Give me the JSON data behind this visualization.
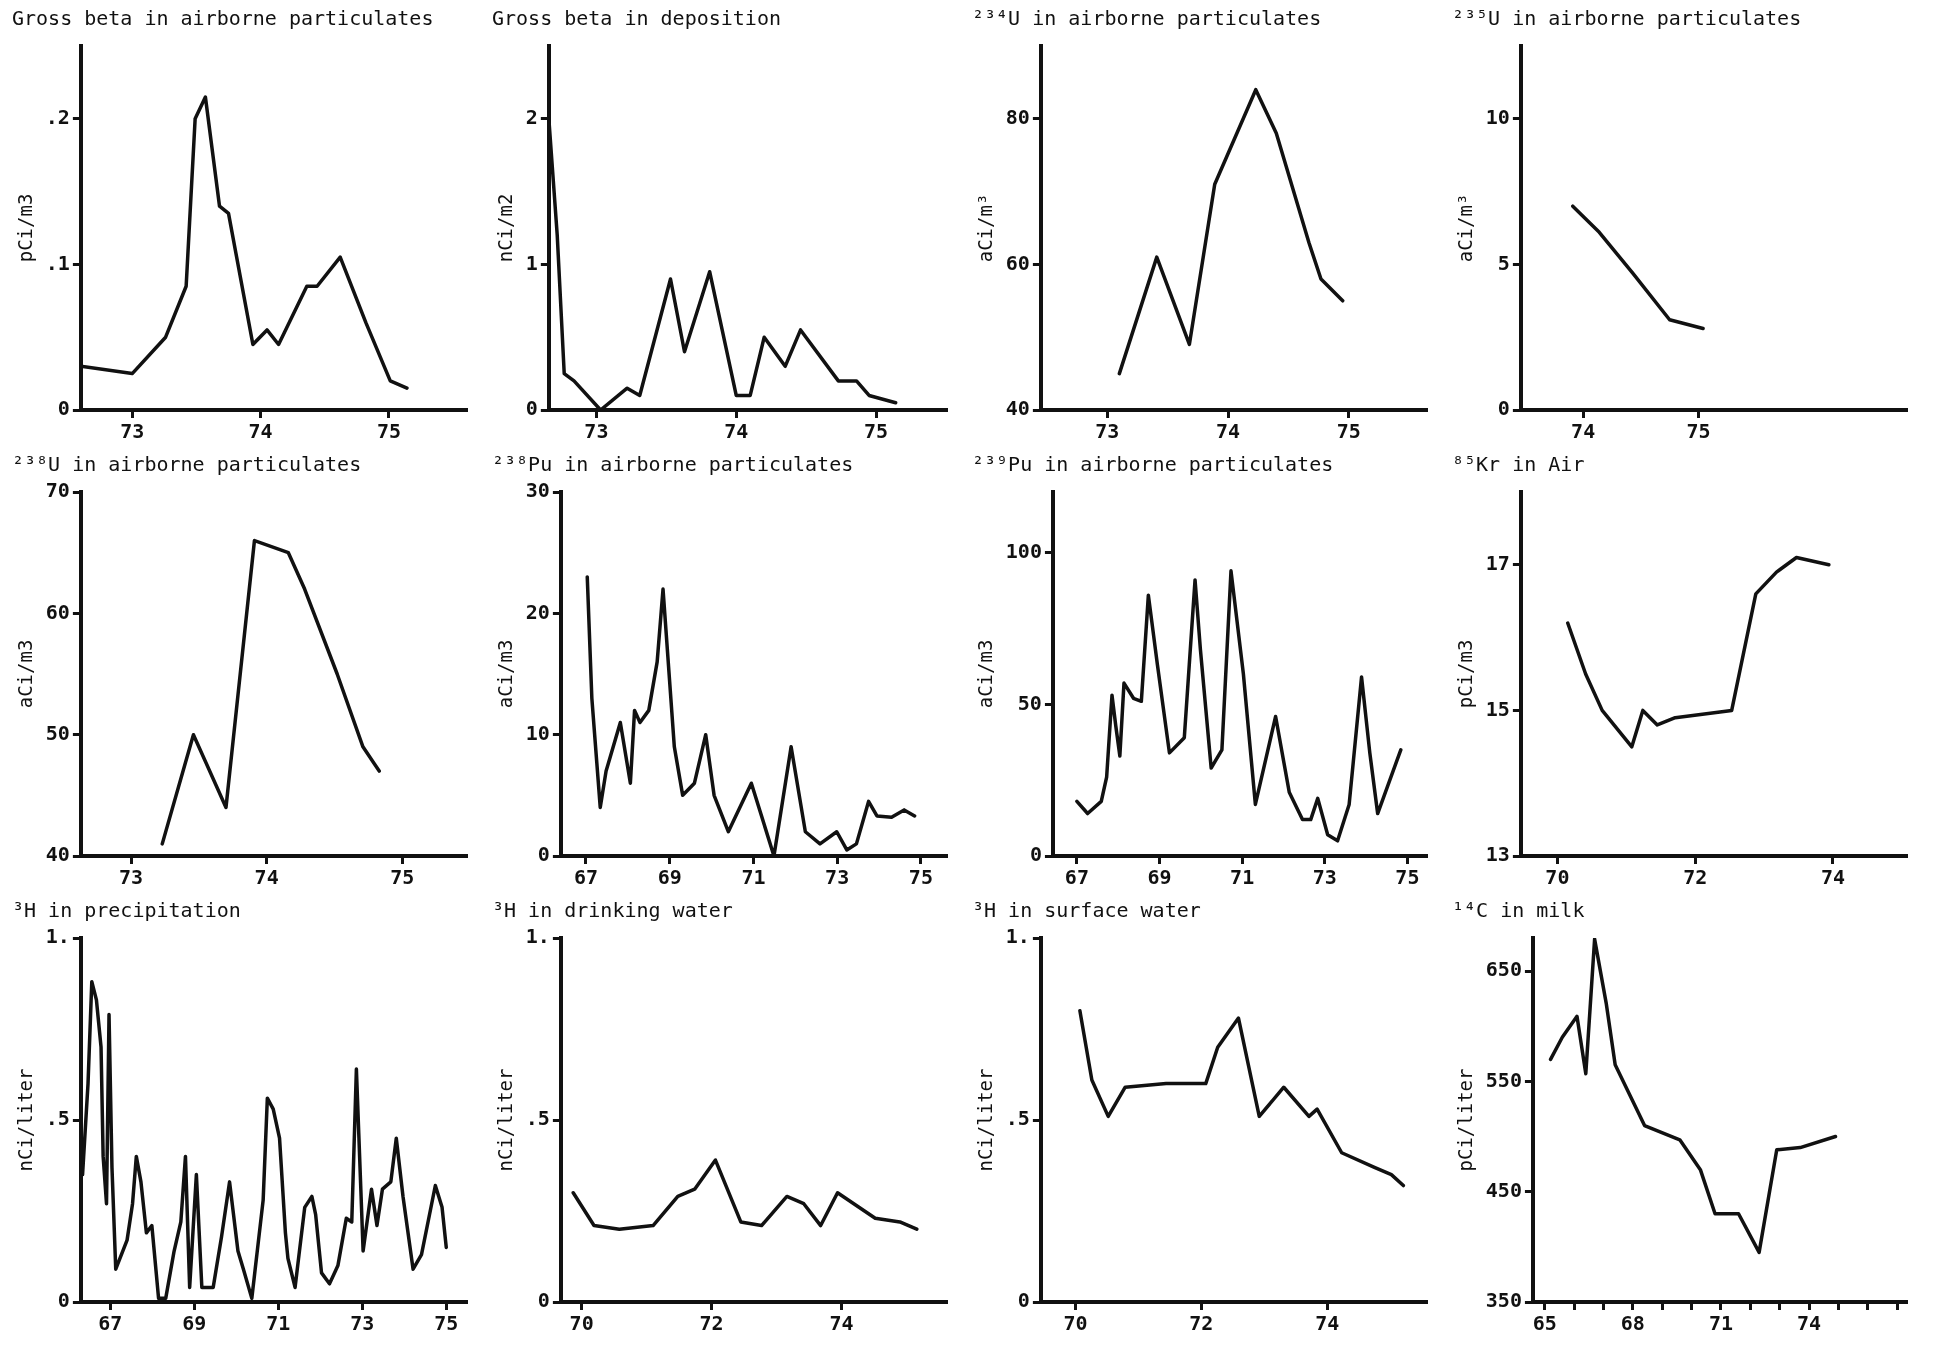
{
  "chart_data": [
    {
      "type": "line",
      "title": "Gross beta in airborne particulates",
      "ylabel": "pCi/m3",
      "color": "#111111",
      "xlim": [
        72.6,
        75.6
      ],
      "xticks": [
        73,
        74,
        75
      ],
      "ylim": [
        0,
        0.25
      ],
      "yticks": [
        0,
        {
          "value": 0.1,
          "label": ".1"
        },
        {
          "value": 0.2,
          "label": ".2"
        }
      ],
      "x": [
        72.6,
        73.0,
        73.26,
        73.42,
        73.49,
        73.57,
        73.68,
        73.75,
        73.94,
        74.05,
        74.14,
        74.36,
        74.44,
        74.62,
        74.82,
        75.01,
        75.14
      ],
      "values": [
        0.03,
        0.025,
        0.05,
        0.085,
        0.2,
        0.215,
        0.14,
        0.135,
        0.045,
        0.055,
        0.045,
        0.085,
        0.085,
        0.105,
        0.06,
        0.02,
        0.015
      ]
    },
    {
      "type": "line",
      "title": "Gross beta in deposition",
      "ylabel": "nCi/m2",
      "color": "#111111",
      "xlim": [
        72.66,
        75.5
      ],
      "xticks": [
        73,
        74,
        75
      ],
      "ylim": [
        0,
        2.5
      ],
      "yticks": [
        0,
        1,
        2
      ],
      "x": [
        72.66,
        72.72,
        72.77,
        72.84,
        73.03,
        73.22,
        73.31,
        73.53,
        73.63,
        73.81,
        74.0,
        74.1,
        74.2,
        74.35,
        74.46,
        74.73,
        74.86,
        74.95,
        75.14
      ],
      "values": [
        2.0,
        1.2,
        0.25,
        0.2,
        0,
        0.15,
        0.1,
        0.9,
        0.4,
        0.95,
        0.1,
        0.1,
        0.5,
        0.3,
        0.55,
        0.2,
        0.2,
        0.1,
        0.05
      ]
    },
    {
      "type": "line",
      "title": "²³⁴U in airborne particulates",
      "ylabel": "aCi/m³",
      "color": "#111111",
      "xlim": [
        72.45,
        75.64
      ],
      "xticks": [
        73,
        74,
        75
      ],
      "ylim": [
        40,
        90
      ],
      "yticks": [
        40,
        60,
        80
      ],
      "x": [
        73.1,
        73.41,
        73.68,
        73.89,
        74.23,
        74.4,
        74.67,
        74.77,
        74.95
      ],
      "values": [
        45,
        61,
        49,
        71,
        84,
        78,
        63,
        58,
        55
      ]
    },
    {
      "type": "line",
      "title": "²³⁵U in airborne particulates",
      "ylabel": "aCi/m³",
      "color": "#111111",
      "xlim": [
        73.46,
        76.8
      ],
      "xticks": [
        74,
        75
      ],
      "ylim": [
        0,
        12.5
      ],
      "yticks": [
        0,
        5,
        10
      ],
      "x": [
        73.91,
        74.14,
        74.43,
        74.75,
        75.04
      ],
      "values": [
        7.0,
        6.1,
        4.7,
        3.1,
        2.8
      ]
    },
    {
      "type": "line",
      "title": "²³⁸U in airborne particulates",
      "ylabel": "aCi/m3",
      "color": "#111111",
      "xlim": [
        72.63,
        75.47
      ],
      "xticks": [
        73,
        74,
        75
      ],
      "ylim": [
        40,
        70
      ],
      "yticks": [
        40,
        50,
        60,
        70
      ],
      "x": [
        73.23,
        73.46,
        73.7,
        73.91,
        74.16,
        74.28,
        74.52,
        74.71,
        74.83
      ],
      "values": [
        41,
        50,
        44,
        66,
        65,
        62,
        55,
        49,
        47
      ]
    },
    {
      "type": "line",
      "title": "²³⁸Pu in airborne particulates",
      "ylabel": "aCi/m3",
      "color": "#111111",
      "xlim": [
        66.4,
        75.6
      ],
      "xticks": [
        67,
        69,
        71,
        73,
        75
      ],
      "ylim": [
        0,
        30
      ],
      "yticks": [
        0,
        10,
        20,
        30
      ],
      "x": [
        67.03,
        67.14,
        67.34,
        67.48,
        67.82,
        68.06,
        68.16,
        68.29,
        68.5,
        68.7,
        68.84,
        69.11,
        69.31,
        69.59,
        69.86,
        70.06,
        70.4,
        70.95,
        71.49,
        71.9,
        72.24,
        72.59,
        72.99,
        73.23,
        73.46,
        73.75,
        73.95,
        74.3,
        74.6,
        74.85
      ],
      "values": [
        23,
        13,
        4,
        7,
        11,
        6,
        12,
        11,
        12,
        16,
        22,
        9,
        5,
        6,
        10,
        5,
        2,
        6,
        0,
        9,
        2,
        1,
        2,
        0.5,
        1,
        4.5,
        3.3,
        3.2,
        3.8,
        3.3
      ]
    },
    {
      "type": "line",
      "title": "²³⁹Pu in airborne particulates",
      "ylabel": "aCi/m3",
      "color": "#111111",
      "xlim": [
        66.42,
        75.45
      ],
      "xticks": [
        67,
        69,
        71,
        73,
        75
      ],
      "ylim": [
        0,
        120
      ],
      "yticks": [
        0,
        50,
        100
      ],
      "x": [
        67.0,
        67.26,
        67.59,
        67.72,
        67.85,
        67.94,
        68.04,
        68.14,
        68.37,
        68.56,
        68.73,
        68.95,
        69.24,
        69.6,
        69.86,
        69.99,
        70.25,
        70.51,
        70.73,
        71.03,
        71.32,
        71.81,
        72.14,
        72.46,
        72.66,
        72.83,
        73.07,
        73.31,
        73.59,
        73.89,
        74.09,
        74.28,
        74.84
      ],
      "values": [
        18,
        14,
        18,
        26,
        53,
        43,
        33,
        57,
        52,
        51,
        86,
        63,
        34,
        39,
        91,
        68,
        29,
        35,
        94,
        60,
        17,
        46,
        21,
        12,
        12,
        19,
        7,
        5,
        17,
        59,
        34,
        14,
        35
      ]
    },
    {
      "type": "line",
      "title": "⁸⁵Kr in Air",
      "ylabel": "pCi/m3",
      "color": "#111111",
      "xlim": [
        69.47,
        75.06
      ],
      "xticks": [
        70,
        72,
        74
      ],
      "ylim": [
        13,
        18
      ],
      "yticks": [
        13,
        15,
        17
      ],
      "x": [
        70.15,
        70.41,
        70.65,
        71.08,
        71.24,
        71.45,
        71.71,
        72.53,
        72.88,
        73.18,
        73.47,
        73.94
      ],
      "values": [
        16.2,
        15.5,
        15.0,
        14.5,
        15.0,
        14.8,
        14.9,
        15.0,
        16.6,
        16.9,
        17.1,
        17.0
      ]
    },
    {
      "type": "line",
      "title": "³H in precipitation",
      "ylabel": "nCi/liter",
      "color": "#111111",
      "xlim": [
        66.3,
        75.47
      ],
      "xticks": [
        67,
        69,
        71,
        73,
        75
      ],
      "ylim": [
        0,
        1
      ],
      "yticks": [
        0,
        {
          "value": 0.5,
          "label": ".5"
        },
        {
          "value": 1,
          "label": "1."
        }
      ],
      "x": [
        66.34,
        66.47,
        66.56,
        66.67,
        66.78,
        66.83,
        66.91,
        66.97,
        67.04,
        67.13,
        67.4,
        67.53,
        67.62,
        67.73,
        67.86,
        67.99,
        68.15,
        68.32,
        68.52,
        68.68,
        68.79,
        68.89,
        69.05,
        69.18,
        69.45,
        69.65,
        69.84,
        70.04,
        70.17,
        70.37,
        70.64,
        70.74,
        70.88,
        71.03,
        71.17,
        71.23,
        71.4,
        71.63,
        71.8,
        71.89,
        72.03,
        72.22,
        72.42,
        72.62,
        72.75,
        72.86,
        73.02,
        73.22,
        73.35,
        73.48,
        73.68,
        73.81,
        73.97,
        74.21,
        74.41,
        74.74,
        74.9,
        75.0
      ],
      "values": [
        0.35,
        0.6,
        0.88,
        0.83,
        0.7,
        0.4,
        0.27,
        0.79,
        0.37,
        0.09,
        0.17,
        0.27,
        0.4,
        0.33,
        0.19,
        0.21,
        0.01,
        0.01,
        0.14,
        0.22,
        0.4,
        0.04,
        0.35,
        0.04,
        0.04,
        0.18,
        0.33,
        0.14,
        0.09,
        0.01,
        0.28,
        0.56,
        0.53,
        0.45,
        0.19,
        0.12,
        0.04,
        0.26,
        0.29,
        0.24,
        0.08,
        0.05,
        0.1,
        0.23,
        0.22,
        0.64,
        0.14,
        0.31,
        0.21,
        0.31,
        0.33,
        0.45,
        0.29,
        0.09,
        0.13,
        0.32,
        0.26,
        0.15
      ]
    },
    {
      "type": "line",
      "title": "³H in drinking water",
      "ylabel": "nCi/liter",
      "color": "#111111",
      "xlim": [
        69.68,
        75.61
      ],
      "xticks": [
        70,
        72,
        74
      ],
      "ylim": [
        0,
        1
      ],
      "yticks": [
        0,
        {
          "value": 0.5,
          "label": ".5"
        },
        {
          "value": 1,
          "label": "1."
        }
      ],
      "x": [
        69.87,
        70.19,
        70.58,
        71.1,
        71.48,
        71.74,
        72.06,
        72.45,
        72.77,
        73.16,
        73.42,
        73.68,
        73.94,
        74.52,
        74.9,
        75.16
      ],
      "values": [
        0.3,
        0.21,
        0.2,
        0.21,
        0.29,
        0.31,
        0.39,
        0.22,
        0.21,
        0.29,
        0.27,
        0.21,
        0.3,
        0.23,
        0.22,
        0.2
      ]
    },
    {
      "type": "line",
      "title": "³H in surface water",
      "ylabel": "nCi/liter",
      "color": "#111111",
      "xlim": [
        69.45,
        75.57
      ],
      "xticks": [
        70,
        72,
        74
      ],
      "ylim": [
        0,
        1
      ],
      "yticks": [
        0,
        {
          "value": 0.5,
          "label": ".5"
        },
        {
          "value": 1,
          "label": "1."
        }
      ],
      "x": [
        70.07,
        70.26,
        70.52,
        70.79,
        71.44,
        72.07,
        72.26,
        72.59,
        72.92,
        73.31,
        73.71,
        73.84,
        74.23,
        74.75,
        75.02,
        75.21
      ],
      "values": [
        0.8,
        0.61,
        0.51,
        0.59,
        0.6,
        0.6,
        0.7,
        0.78,
        0.51,
        0.59,
        0.51,
        0.53,
        0.41,
        0.37,
        0.35,
        0.32
      ]
    },
    {
      "type": "line",
      "title": "¹⁴C in milk",
      "ylabel": "pCi/liter",
      "color": "#111111",
      "xlim": [
        64.6,
        77.3
      ],
      "xticks": [
        65,
        {
          "value": 66,
          "label": null
        },
        {
          "value": 67,
          "label": null
        },
        68,
        {
          "value": 69,
          "label": null
        },
        {
          "value": 70,
          "label": null
        },
        71,
        {
          "value": 72,
          "label": null
        },
        {
          "value": 73,
          "label": null
        },
        74,
        {
          "value": 75,
          "label": null
        },
        {
          "value": 76,
          "label": null
        },
        {
          "value": 77,
          "label": null
        }
      ],
      "ylim": [
        350,
        680
      ],
      "yticks": [
        350,
        450,
        550,
        650
      ],
      "x": [
        65.2,
        65.6,
        66.1,
        66.4,
        66.7,
        67.1,
        67.4,
        68.4,
        69.6,
        70.3,
        70.8,
        71.6,
        72.3,
        72.9,
        73.7,
        74.9
      ],
      "values": [
        570,
        590,
        609,
        557,
        679,
        620,
        565,
        510,
        497,
        470,
        430,
        430,
        395,
        488,
        490,
        500
      ]
    }
  ]
}
